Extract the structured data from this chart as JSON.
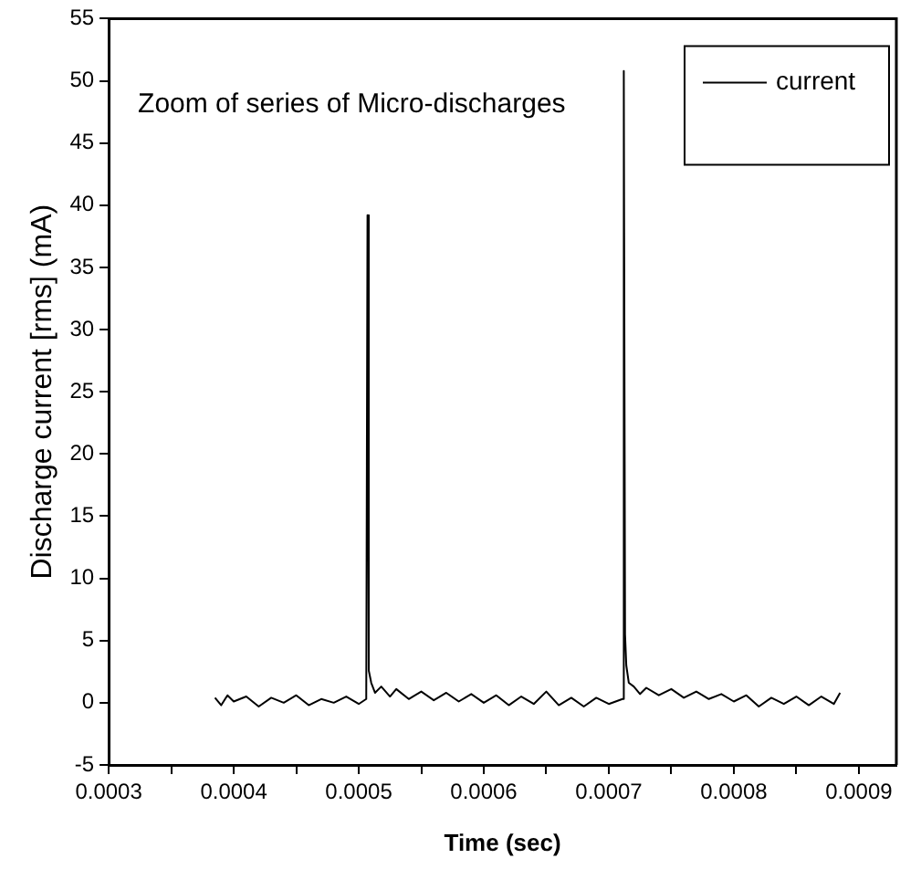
{
  "chart_data": {
    "type": "line",
    "xlabel": "Time (sec)",
    "ylabel": "Discharge current [rms] (mA)",
    "annotations": [
      "Zoom of series of Micro-discharges"
    ],
    "xlim": [
      0.0003,
      0.00093
    ],
    "ylim": [
      -5,
      55
    ],
    "xticks": [
      0.0003,
      {
        "value": 0.00035,
        "label": null
      },
      0.0004,
      {
        "value": 0.00045,
        "label": null
      },
      0.0005,
      {
        "value": 0.00055,
        "label": null
      },
      0.0006,
      {
        "value": 0.00065,
        "label": null
      },
      0.0007,
      {
        "value": 0.00075,
        "label": null
      },
      0.0008,
      {
        "value": 0.00085,
        "label": null
      },
      0.0009
    ],
    "yticks": [
      -5,
      0,
      5,
      10,
      15,
      20,
      25,
      30,
      35,
      40,
      45,
      50,
      55
    ],
    "grid": false,
    "legend": "top right",
    "marker": "none",
    "line_style": "solid",
    "series": [
      {
        "name": "current",
        "color": "#000000",
        "x": [
          0.000385,
          0.00039,
          0.000395,
          0.0004,
          0.00041,
          0.00042,
          0.00043,
          0.00044,
          0.00045,
          0.00046,
          0.00047,
          0.00048,
          0.00049,
          0.0005,
          0.000506,
          0.000507,
          0.000508,
          0.00051,
          0.000513,
          0.000518,
          0.000525,
          0.00053,
          0.00054,
          0.00055,
          0.00056,
          0.00057,
          0.00058,
          0.00059,
          0.0006,
          0.00061,
          0.00062,
          0.00063,
          0.00064,
          0.00065,
          0.00066,
          0.00067,
          0.00068,
          0.00069,
          0.0007,
          0.000711,
          0.000712,
          0.000713,
          0.000714,
          0.000716,
          0.00072,
          0.000725,
          0.00073,
          0.00074,
          0.00075,
          0.00076,
          0.00077,
          0.00078,
          0.00079,
          0.0008,
          0.00081,
          0.00082,
          0.00083,
          0.00084,
          0.00085,
          0.00086,
          0.00087,
          0.00088,
          0.000885
        ],
        "values": [
          0.4,
          -0.2,
          0.6,
          0.1,
          0.5,
          -0.3,
          0.4,
          0.0,
          0.6,
          -0.2,
          0.3,
          0.0,
          0.5,
          -0.1,
          0.3,
          39.2,
          2.6,
          1.6,
          0.8,
          1.3,
          0.5,
          1.1,
          0.3,
          0.9,
          0.2,
          0.8,
          0.1,
          0.7,
          0.0,
          0.6,
          -0.2,
          0.5,
          -0.1,
          0.9,
          -0.2,
          0.4,
          -0.3,
          0.4,
          -0.1,
          0.3,
          50.8,
          5.5,
          3.0,
          1.6,
          1.3,
          0.7,
          1.2,
          0.6,
          1.1,
          0.4,
          0.9,
          0.3,
          0.7,
          0.1,
          0.6,
          -0.3,
          0.4,
          -0.1,
          0.5,
          -0.2,
          0.5,
          -0.1,
          0.8
        ]
      }
    ]
  }
}
